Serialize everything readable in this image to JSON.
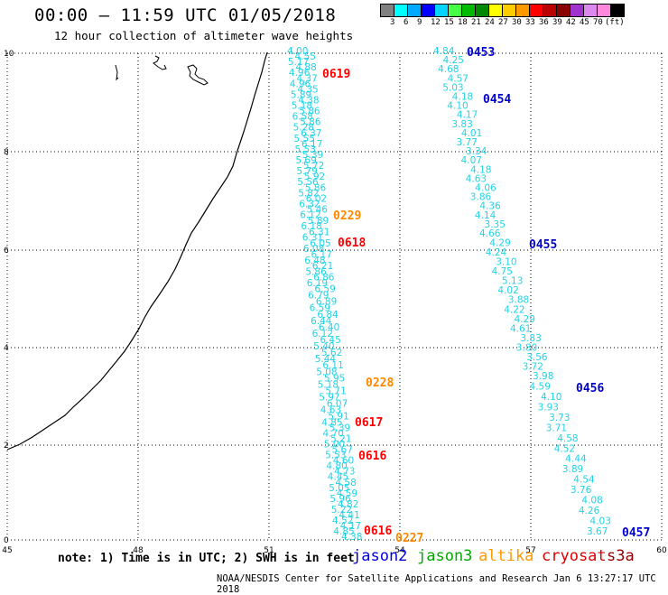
{
  "title": "00:00 – 11:59 UTC 01/05/2018",
  "subtitle": "12 hour collection of altimeter wave heights",
  "legend": {
    "colors": [
      "#808080",
      "#00ffff",
      "#00aaff",
      "#0000ff",
      "#00d4ff",
      "#44ff44",
      "#00bb00",
      "#008800",
      "#ffff00",
      "#ffcc00",
      "#ff9900",
      "#ff0000",
      "#bb0000",
      "#880000",
      "#a033cc",
      "#dd88ee",
      "#ff88dd",
      "#000000"
    ],
    "labels": [
      "3",
      "6",
      "9",
      "12",
      "15",
      "18",
      "21",
      "24",
      "27",
      "30",
      "33",
      "36",
      "39",
      "42",
      "45",
      "70",
      "(ft)"
    ]
  },
  "axes": {
    "x_ticks": [
      "45",
      "48",
      "51",
      "54",
      "57",
      "60"
    ],
    "y_ticks": [
      "0",
      "2",
      "4",
      "6",
      "8",
      "10"
    ]
  },
  "passes": [
    {
      "label": "0453",
      "color": "#0000cc"
    },
    {
      "label": "0454",
      "color": "#0000cc"
    },
    {
      "label": "0455",
      "color": "#0000cc"
    },
    {
      "label": "0456",
      "color": "#0000cc"
    },
    {
      "label": "0457",
      "color": "#0000cc"
    },
    {
      "label": "0619",
      "color": "#ff0000"
    },
    {
      "label": "0618",
      "color": "#ff0000"
    },
    {
      "label": "0617",
      "color": "#ff0000"
    },
    {
      "label": "0616",
      "color": "#ff0000"
    },
    {
      "label": "0616",
      "color": "#ff0000"
    },
    {
      "label": "0229",
      "color": "#ff8800"
    },
    {
      "label": "0228",
      "color": "#ff8800"
    },
    {
      "label": "0227",
      "color": "#ff8800"
    }
  ],
  "track_a": [
    "4.00",
    "4.55",
    "5.17",
    "4.88",
    "4.96",
    "4.37",
    "4.96",
    "4.35",
    "5.89",
    "4.38",
    "5.18",
    "5.86",
    "6.58",
    "5.86",
    "5.28",
    "6.37",
    "5.55",
    "6.17",
    "5.53",
    "5.39",
    "5.69",
    "5.72",
    "5.79",
    "5.92",
    "5.56",
    "5.86",
    "5.82",
    "6.02",
    "6.32",
    "5.46",
    "6.12",
    "5.89",
    "6.18",
    "6.31",
    "6.31",
    "6.05",
    "6.08",
    "6.17",
    "6.48",
    "6.21",
    "5.86",
    "6.86",
    "6.19",
    "6.59",
    "6.79",
    "6.89",
    "6.59",
    "6.84",
    "6.44",
    "6.40",
    "6.12",
    "6.45",
    "5.40",
    "5.62",
    "5.44",
    "6.11",
    "5.08",
    "5.95",
    "5.18",
    "5.71",
    "5.97",
    "6.07",
    "4.63",
    "5.91",
    "4.85",
    "5.39",
    "4.70",
    "5.21",
    "5.00",
    "5.67",
    "5.53",
    "4.60",
    "4.80",
    "4.73",
    "4.45",
    "4.58",
    "5.05",
    "4.59",
    "5.96",
    "4.82",
    "5.22",
    "4.41",
    "4.52",
    "4.17",
    "4.85",
    "4.38"
  ],
  "track_b": [
    "4.84",
    "4.25",
    "4.68",
    "4.57",
    "5.03",
    "4.18",
    "4.10",
    "4.17",
    "3.83",
    "4.01",
    "3.77",
    "3.34",
    "4.07",
    "4.18",
    "4.63",
    "4.06",
    "3.86",
    "4.36",
    "4.14",
    "3.35",
    "4.66",
    "4.29",
    "4.24",
    "3.10",
    "4.75",
    "5.13",
    "4.02",
    "3.88",
    "4.22",
    "4.29",
    "4.61",
    "3.83",
    "3.80",
    "3.56",
    "3.72",
    "3.98",
    "4.59",
    "4.10",
    "3.93",
    "3.73",
    "3.71",
    "4.58",
    "4.52",
    "4.44",
    "3.89",
    "4.54",
    "3.76",
    "4.08",
    "4.26",
    "4.03",
    "3.67"
  ],
  "note": "note: 1) Time is in UTC; 2) SWH is in feet",
  "missions": [
    {
      "label": "jason2",
      "color": "#0000dd"
    },
    {
      "label": "jason3",
      "color": "#00aa00"
    },
    {
      "label": "altika",
      "color": "#ff9900"
    },
    {
      "label": "cryosat",
      "color": "#dd0000"
    },
    {
      "label": "s3a",
      "color": "#990000"
    }
  ],
  "credit": "NOAA/NESDIS Center for Satellite Applications and Research   Jan  6 13:27:17 UTC 2018"
}
